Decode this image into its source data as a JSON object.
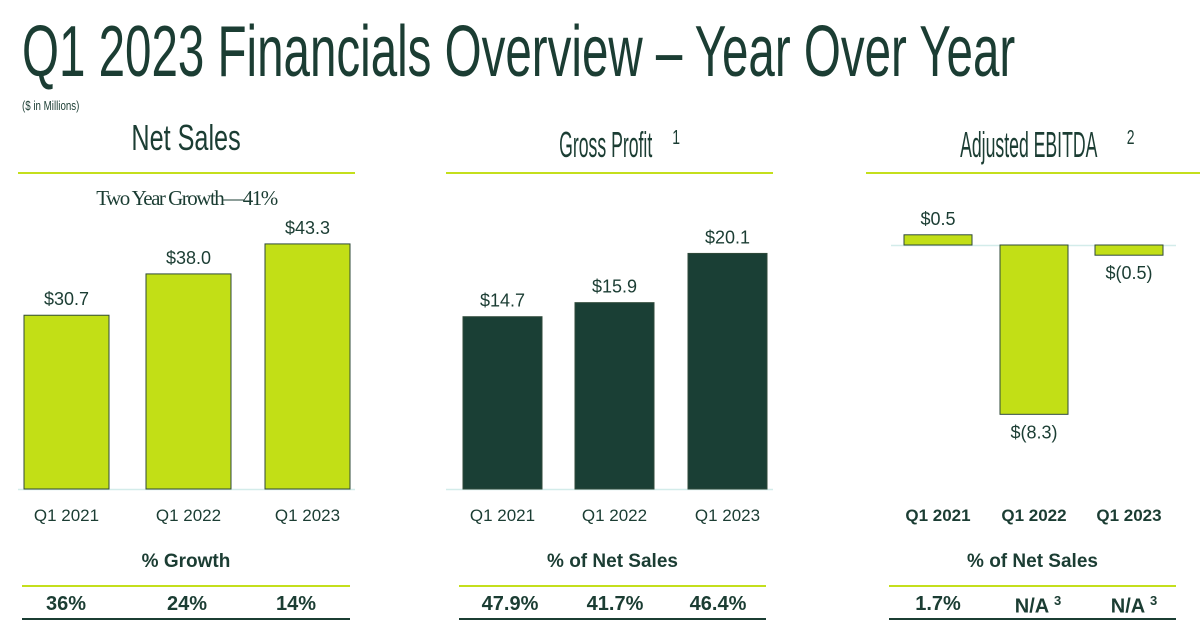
{
  "title": "Q1 2023 Financials Overview – Year Over Year",
  "units": "($ in Millions)",
  "colors": {
    "lime": "#c2df16",
    "dark_green": "#1a3f35",
    "text": "#1b3d33"
  },
  "chart_data": [
    {
      "type": "bar",
      "title": "Net Sales",
      "subtitle": "Two Year Growth—41%",
      "categories": [
        "Q1 2021",
        "Q1 2022",
        "Q1 2023"
      ],
      "values": [
        30.7,
        38.0,
        43.3
      ],
      "labels": [
        "$30.7",
        "$38.0",
        "$43.3"
      ],
      "color": "#c2df16",
      "table": {
        "header": "% Growth",
        "values": [
          "36%",
          "24%",
          "14%"
        ]
      }
    },
    {
      "type": "bar",
      "title": "Gross Profit",
      "title_sup": "1",
      "categories": [
        "Q1 2021",
        "Q1 2022",
        "Q1 2023"
      ],
      "values": [
        14.7,
        15.9,
        20.1
      ],
      "labels": [
        "$14.7",
        "$15.9",
        "$20.1"
      ],
      "color": "#1a3f35",
      "table": {
        "header": "% of Net Sales",
        "values": [
          "47.9%",
          "41.7%",
          "46.4%"
        ]
      }
    },
    {
      "type": "bar",
      "title": "Adjusted EBITDA",
      "title_sup": "2",
      "categories": [
        "Q1 2021",
        "Q1 2022",
        "Q1 2023"
      ],
      "values": [
        0.5,
        -8.3,
        -0.5
      ],
      "labels": [
        "$0.5",
        "$(8.3)",
        "$(0.5)"
      ],
      "color": "#c2df16",
      "table": {
        "header": "% of Net Sales",
        "values": [
          "1.7%",
          "N/A",
          "N/A"
        ],
        "value_sups": [
          "",
          "3",
          "3"
        ]
      }
    }
  ]
}
